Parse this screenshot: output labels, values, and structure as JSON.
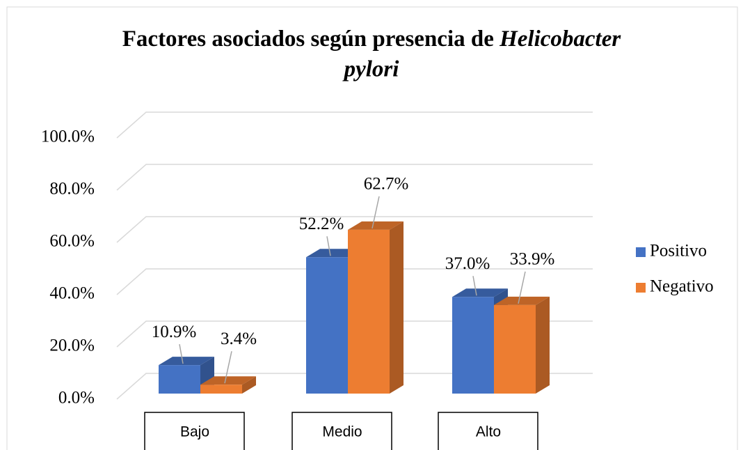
{
  "chart_data": {
    "type": "bar3d",
    "title": [
      {
        "text": "Factores asociados según presencia de ",
        "style": "normal"
      },
      {
        "text": "Helicobacter",
        "style": "italic"
      },
      {
        "text": "pylori",
        "style": "italic"
      }
    ],
    "categories": [
      "Bajo",
      "Medio",
      "Alto"
    ],
    "series": [
      {
        "name": "Positivo",
        "color": "#4472c4",
        "values": [
          10.9,
          52.2,
          37.0
        ],
        "value_labels": [
          "10.9%",
          "52.2%",
          "37.0%"
        ]
      },
      {
        "name": "Negativo",
        "color": "#ed7d31",
        "values": [
          3.4,
          62.7,
          33.9
        ],
        "value_labels": [
          "3.4%",
          "62.7%",
          "33.9%"
        ]
      }
    ],
    "ylim": [
      0,
      100
    ],
    "yticks": [
      {
        "value": 0,
        "label": "0.0%"
      },
      {
        "value": 20,
        "label": "20.0%"
      },
      {
        "value": 40,
        "label": "40.0%"
      },
      {
        "value": 60,
        "label": "60.0%"
      },
      {
        "value": 80,
        "label": "80.0%"
      },
      {
        "value": 100,
        "label": "100.0%"
      }
    ],
    "grid": true,
    "legend": "right"
  }
}
